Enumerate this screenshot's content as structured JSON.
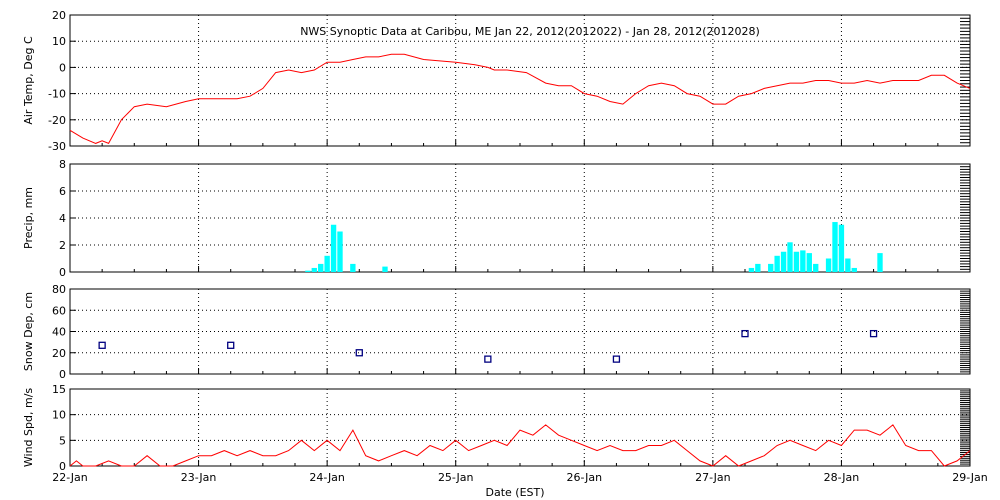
{
  "title": "NWS Synoptic Data at Caribou, ME   Jan 22, 2012(2012022) - Jan 28, 2012(2012028)",
  "xlabel": "Date (EST)",
  "x_ticks": [
    "22-Jan",
    "23-Jan",
    "24-Jan",
    "25-Jan",
    "26-Jan",
    "27-Jan",
    "28-Jan",
    "29-Jan"
  ],
  "colors": {
    "temp": "#ff0000",
    "precip": "#00ffff",
    "snow": "#000080",
    "wind": "#ff0000",
    "grid": "#000000"
  },
  "chart_data": [
    {
      "type": "line",
      "ylabel": "Air Temp, Deg C",
      "ylim": [
        -30,
        20
      ],
      "yticks": [
        -30,
        -20,
        -10,
        0,
        10,
        20
      ],
      "grid": true,
      "series": [
        {
          "x": [
            0,
            0.1,
            0.2,
            0.25,
            0.3,
            0.4,
            0.5,
            0.6,
            0.75,
            0.9,
            1.0,
            1.2,
            1.3,
            1.4,
            1.5,
            1.6,
            1.7,
            1.8,
            1.9,
            2.0,
            2.1,
            2.2,
            2.3,
            2.4,
            2.5,
            2.6,
            2.75,
            3.0,
            3.15,
            3.25,
            3.3,
            3.4,
            3.55,
            3.7,
            3.8,
            3.9,
            4.0,
            4.1,
            4.2,
            4.3,
            4.4,
            4.5,
            4.6,
            4.7,
            4.8,
            4.9,
            5.0,
            5.1,
            5.2,
            5.3,
            5.4,
            5.5,
            5.6,
            5.7,
            5.8,
            5.9,
            6.0,
            6.1,
            6.2,
            6.3,
            6.4,
            6.5,
            6.6,
            6.7,
            6.8,
            6.9,
            7.0
          ],
          "y": [
            -24,
            -27,
            -29,
            -28,
            -29,
            -20,
            -15,
            -14,
            -15,
            -13,
            -12,
            -12,
            -12,
            -11,
            -8,
            -2,
            -1,
            -2,
            -1,
            2,
            2,
            3,
            4,
            4,
            5,
            5,
            3,
            2,
            1,
            0,
            -1,
            -1,
            -2,
            -6,
            -7,
            -7,
            -10,
            -11,
            -13,
            -14,
            -10,
            -7,
            -6,
            -7,
            -10,
            -11,
            -14,
            -14,
            -11,
            -10,
            -8,
            -7,
            -6,
            -6,
            -5,
            -5,
            -6,
            -6,
            -5,
            -6,
            -5,
            -5,
            -5,
            -3,
            -3,
            -6,
            -8
          ]
        }
      ]
    },
    {
      "type": "bar",
      "ylabel": "Precip, mm",
      "ylim": [
        0,
        8
      ],
      "yticks": [
        0,
        2,
        4,
        6,
        8
      ],
      "grid": true,
      "x": [
        1.85,
        1.9,
        1.95,
        2.0,
        2.05,
        2.1,
        2.2,
        2.45,
        5.3,
        5.35,
        5.45,
        5.5,
        5.55,
        5.6,
        5.65,
        5.7,
        5.75,
        5.8,
        5.9,
        5.95,
        6.0,
        6.05,
        6.1,
        6.3
      ],
      "values": [
        0.1,
        0.3,
        0.6,
        1.2,
        3.5,
        3.0,
        0.6,
        0.4,
        0.3,
        0.6,
        0.6,
        1.2,
        1.5,
        2.2,
        1.5,
        1.6,
        1.4,
        0.6,
        1.0,
        3.7,
        3.5,
        1.0,
        0.3,
        1.4
      ]
    },
    {
      "type": "scatter",
      "ylabel": "Snow Dep, cm",
      "ylim": [
        0,
        80
      ],
      "yticks": [
        0,
        20,
        40,
        60,
        80
      ],
      "grid": true,
      "x": [
        0.25,
        1.25,
        2.25,
        3.25,
        4.25,
        5.25,
        6.25
      ],
      "y": [
        27,
        27,
        20,
        14,
        14,
        38,
        38
      ]
    },
    {
      "type": "line",
      "ylabel": "Wind Spd, m/s",
      "ylim": [
        0,
        15
      ],
      "yticks": [
        0,
        5,
        10,
        15
      ],
      "grid": true,
      "series": [
        {
          "x": [
            0,
            0.05,
            0.1,
            0.2,
            0.3,
            0.4,
            0.5,
            0.6,
            0.7,
            0.8,
            0.9,
            1.0,
            1.1,
            1.2,
            1.3,
            1.4,
            1.5,
            1.6,
            1.7,
            1.8,
            1.9,
            2.0,
            2.1,
            2.2,
            2.3,
            2.4,
            2.5,
            2.6,
            2.7,
            2.8,
            2.9,
            3.0,
            3.1,
            3.2,
            3.3,
            3.4,
            3.5,
            3.6,
            3.7,
            3.8,
            3.9,
            4.0,
            4.1,
            4.2,
            4.3,
            4.4,
            4.5,
            4.6,
            4.7,
            4.8,
            4.9,
            5.0,
            5.1,
            5.2,
            5.3,
            5.4,
            5.5,
            5.6,
            5.7,
            5.8,
            5.9,
            6.0,
            6.1,
            6.2,
            6.3,
            6.4,
            6.5,
            6.6,
            6.7,
            6.8,
            6.9,
            7.0
          ],
          "y": [
            0,
            1,
            0,
            0,
            1,
            0,
            0,
            2,
            0,
            0,
            1,
            2,
            2,
            3,
            2,
            3,
            2,
            2,
            3,
            5,
            3,
            5,
            3,
            7,
            2,
            1,
            2,
            3,
            2,
            4,
            3,
            5,
            3,
            4,
            5,
            4,
            7,
            6,
            8,
            6,
            5,
            4,
            3,
            4,
            3,
            3,
            4,
            4,
            5,
            3,
            1,
            0,
            2,
            0,
            1,
            2,
            4,
            5,
            4,
            3,
            5,
            4,
            7,
            7,
            6,
            8,
            4,
            3,
            3,
            0,
            1,
            3
          ]
        }
      ]
    }
  ]
}
